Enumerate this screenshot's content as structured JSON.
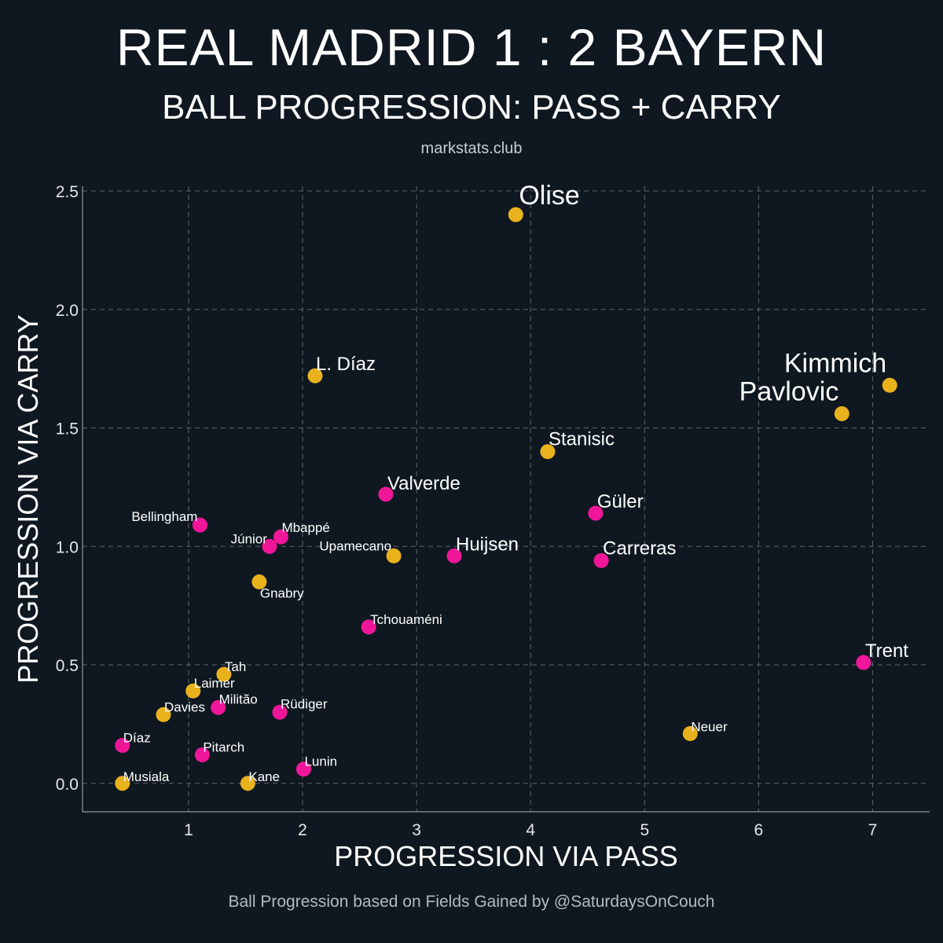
{
  "header": {
    "title": "REAL MADRID 1 : 2 BAYERN",
    "subtitle": "BALL PROGRESSION: PASS + CARRY",
    "source": "markstats.club"
  },
  "footer": {
    "text": "Ball Progression based on Fields Gained by @SaturdaysOnCouch"
  },
  "colors": {
    "background": "#0f1820",
    "real_madrid": "#f0169a",
    "bayern": "#e9b21d",
    "grid": "#5b6670"
  },
  "chart_data": {
    "type": "scatter",
    "xlabel": "PROGRESSION VIA PASS",
    "ylabel": "PROGRESSION VIA CARRY",
    "xlim": [
      0.07,
      7.5
    ],
    "ylim": [
      -0.12,
      2.52
    ],
    "x_ticks": [
      1,
      2,
      3,
      4,
      5,
      6,
      7
    ],
    "y_ticks": [
      0.0,
      0.5,
      1.0,
      1.5,
      2.0,
      2.5
    ],
    "y_tick_labels": [
      "0.0",
      "0.5",
      "1.0",
      "1.5",
      "2.0",
      "2.5"
    ],
    "grid": true,
    "series": [
      {
        "color": "#e9b21d",
        "points": [
          {
            "label": "Olise",
            "x": 3.87,
            "y": 2.4,
            "size": "large"
          },
          {
            "label": "Kimmich",
            "x": 7.15,
            "y": 1.68,
            "size": "large"
          },
          {
            "label": "Pavlovic",
            "x": 6.73,
            "y": 1.56,
            "size": "large"
          },
          {
            "label": "L. Díaz",
            "x": 2.11,
            "y": 1.72,
            "size": "medium"
          },
          {
            "label": "Stanisic",
            "x": 4.15,
            "y": 1.4,
            "size": "medium"
          },
          {
            "label": "Upamecano",
            "x": 2.8,
            "y": 0.96,
            "size": "small"
          },
          {
            "label": "Gnabry",
            "x": 1.62,
            "y": 0.85,
            "size": "small"
          },
          {
            "label": "Tah",
            "x": 1.31,
            "y": 0.46,
            "size": "small"
          },
          {
            "label": "Laimer",
            "x": 1.04,
            "y": 0.39,
            "size": "small"
          },
          {
            "label": "Davies",
            "x": 0.78,
            "y": 0.29,
            "size": "small"
          },
          {
            "label": "Musiala",
            "x": 0.42,
            "y": 0.0,
            "size": "small"
          },
          {
            "label": "Kane",
            "x": 1.52,
            "y": 0.0,
            "size": "small"
          },
          {
            "label": "Neuer",
            "x": 5.4,
            "y": 0.21,
            "size": "small"
          }
        ]
      },
      {
        "color": "#f0169a",
        "points": [
          {
            "label": "Valverde",
            "x": 2.73,
            "y": 1.22,
            "size": "medium"
          },
          {
            "label": "Güler",
            "x": 4.57,
            "y": 1.14,
            "size": "medium"
          },
          {
            "label": "Carreras",
            "x": 4.62,
            "y": 0.94,
            "size": "medium"
          },
          {
            "label": "Huijsen",
            "x": 3.33,
            "y": 0.96,
            "size": "medium"
          },
          {
            "label": "Bellingham",
            "x": 1.1,
            "y": 1.09,
            "size": "small"
          },
          {
            "label": "Mbappé",
            "x": 1.81,
            "y": 1.04,
            "size": "small"
          },
          {
            "label": "Júnior",
            "x": 1.71,
            "y": 1.0,
            "size": "small"
          },
          {
            "label": "Tchouaméni",
            "x": 2.58,
            "y": 0.66,
            "size": "small"
          },
          {
            "label": "Trent",
            "x": 6.92,
            "y": 0.51,
            "size": "medium"
          },
          {
            "label": "Militão",
            "x": 1.26,
            "y": 0.32,
            "size": "small"
          },
          {
            "label": "Rüdiger",
            "x": 1.8,
            "y": 0.3,
            "size": "small"
          },
          {
            "label": "Díaz",
            "x": 0.42,
            "y": 0.16,
            "size": "small"
          },
          {
            "label": "Pitarch",
            "x": 1.12,
            "y": 0.12,
            "size": "small"
          },
          {
            "label": "Lunin",
            "x": 2.01,
            "y": 0.06,
            "size": "small"
          }
        ]
      }
    ]
  }
}
